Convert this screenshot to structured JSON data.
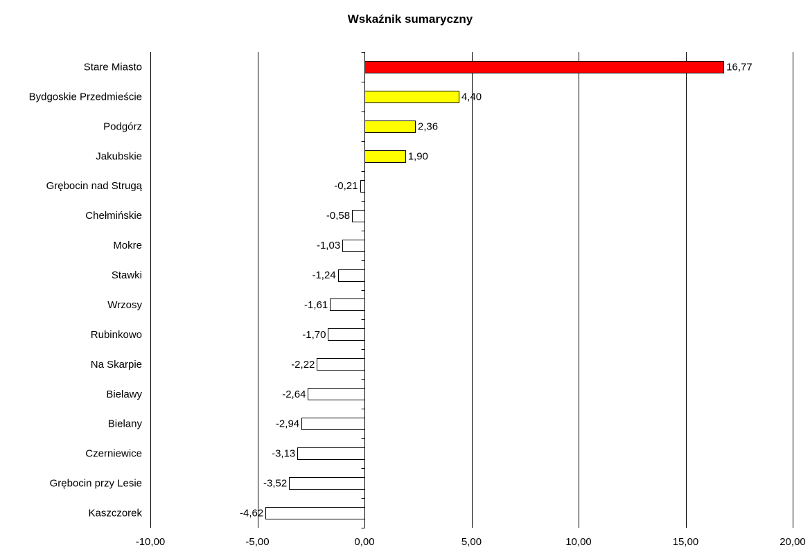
{
  "chart_data": {
    "type": "bar",
    "orientation": "horizontal",
    "title": "Wskaźnik sumaryczny",
    "xlabel": "",
    "ylabel": "",
    "categories": [
      "Stare Miasto",
      "Bydgoskie Przedmieście",
      "Podgórz",
      "Jakubskie",
      "Grębocin nad Strugą",
      "Chełmińskie",
      "Mokre",
      "Stawki",
      "Wrzosy",
      "Rubinkowo",
      "Na Skarpie",
      "Bielawy",
      "Bielany",
      "Czerniewice",
      "Grębocin przy Lesie",
      "Kaszczorek"
    ],
    "values": [
      16.77,
      4.4,
      2.36,
      1.9,
      -0.21,
      -0.58,
      -1.03,
      -1.24,
      -1.61,
      -1.7,
      -2.22,
      -2.64,
      -2.94,
      -3.13,
      -3.52,
      -4.62
    ],
    "value_labels": [
      "16,77",
      "4,40",
      "2,36",
      "1,90",
      "-0,21",
      "-0,58",
      "-1,03",
      "-1,24",
      "-1,61",
      "-1,70",
      "-2,22",
      "-2,64",
      "-2,94",
      "-3,13",
      "-3,52",
      "-4,62"
    ],
    "bar_colors": [
      "#ff0000",
      "#ffff00",
      "#ffff00",
      "#ffff00",
      "#ffffff",
      "#ffffff",
      "#ffffff",
      "#ffffff",
      "#ffffff",
      "#ffffff",
      "#ffffff",
      "#ffffff",
      "#ffffff",
      "#ffffff",
      "#ffffff",
      "#ffffff"
    ],
    "xlim": [
      -10,
      20
    ],
    "x_ticks": [
      -10,
      -5,
      0,
      5,
      10,
      15,
      20
    ],
    "x_tick_labels": [
      "-10,00",
      "-5,00",
      "0,00",
      "5,00",
      "10,00",
      "15,00",
      "20,00"
    ],
    "grid": "vertical",
    "legend": "none"
  }
}
